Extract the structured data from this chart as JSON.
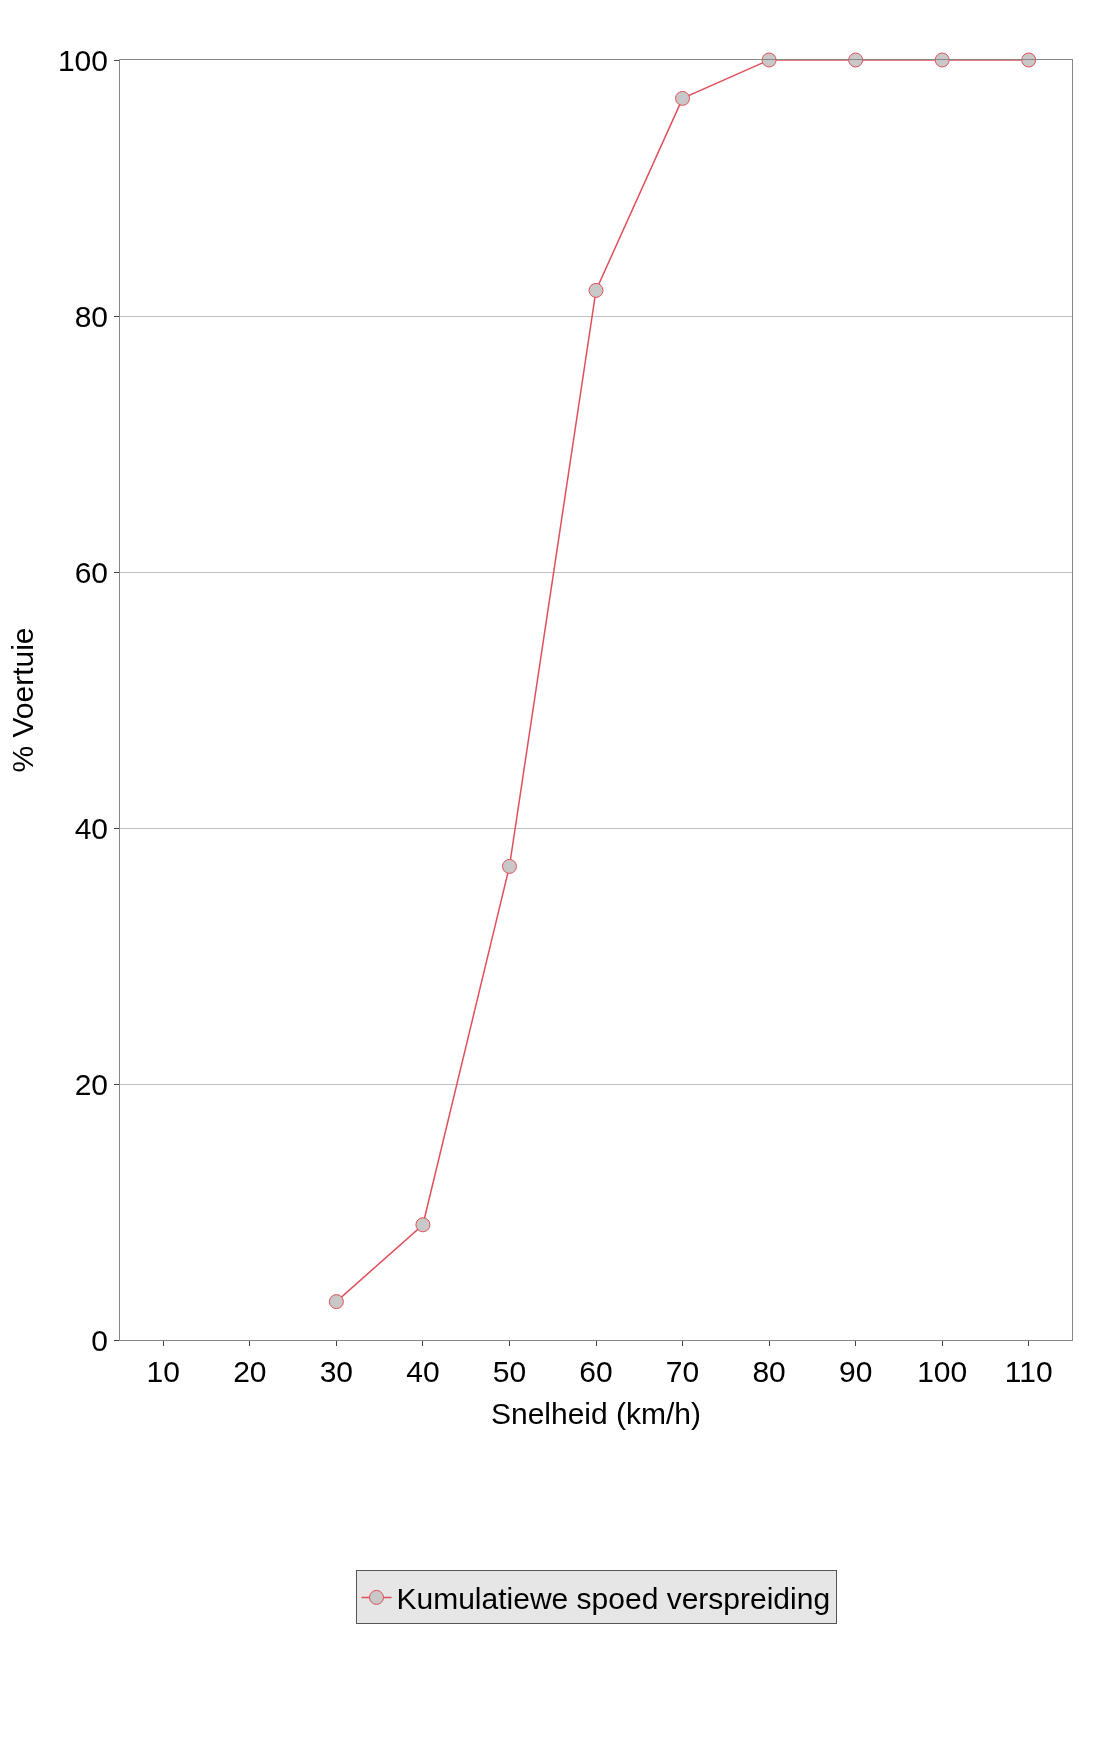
{
  "chart_data": {
    "type": "line",
    "xlabel": "Snelheid (km/h)",
    "ylabel": "% Voertuie",
    "x": [
      30,
      40,
      50,
      60,
      70,
      80,
      90,
      100,
      110
    ],
    "series": [
      {
        "name": "Kumulatiewe spoed verspreiding",
        "color": "#e0505a",
        "values": [
          3,
          9,
          37,
          82,
          97,
          100,
          100,
          100,
          100
        ]
      }
    ],
    "xlim": [
      5,
      115
    ],
    "xticks": [
      10,
      20,
      30,
      40,
      50,
      60,
      70,
      80,
      90,
      100,
      110
    ],
    "ylim": [
      0,
      100
    ],
    "yticks": [
      0,
      20,
      40,
      60,
      80,
      100
    ],
    "grid": "y",
    "legend": "bottom",
    "marker": "circle",
    "line_style": "solid"
  }
}
